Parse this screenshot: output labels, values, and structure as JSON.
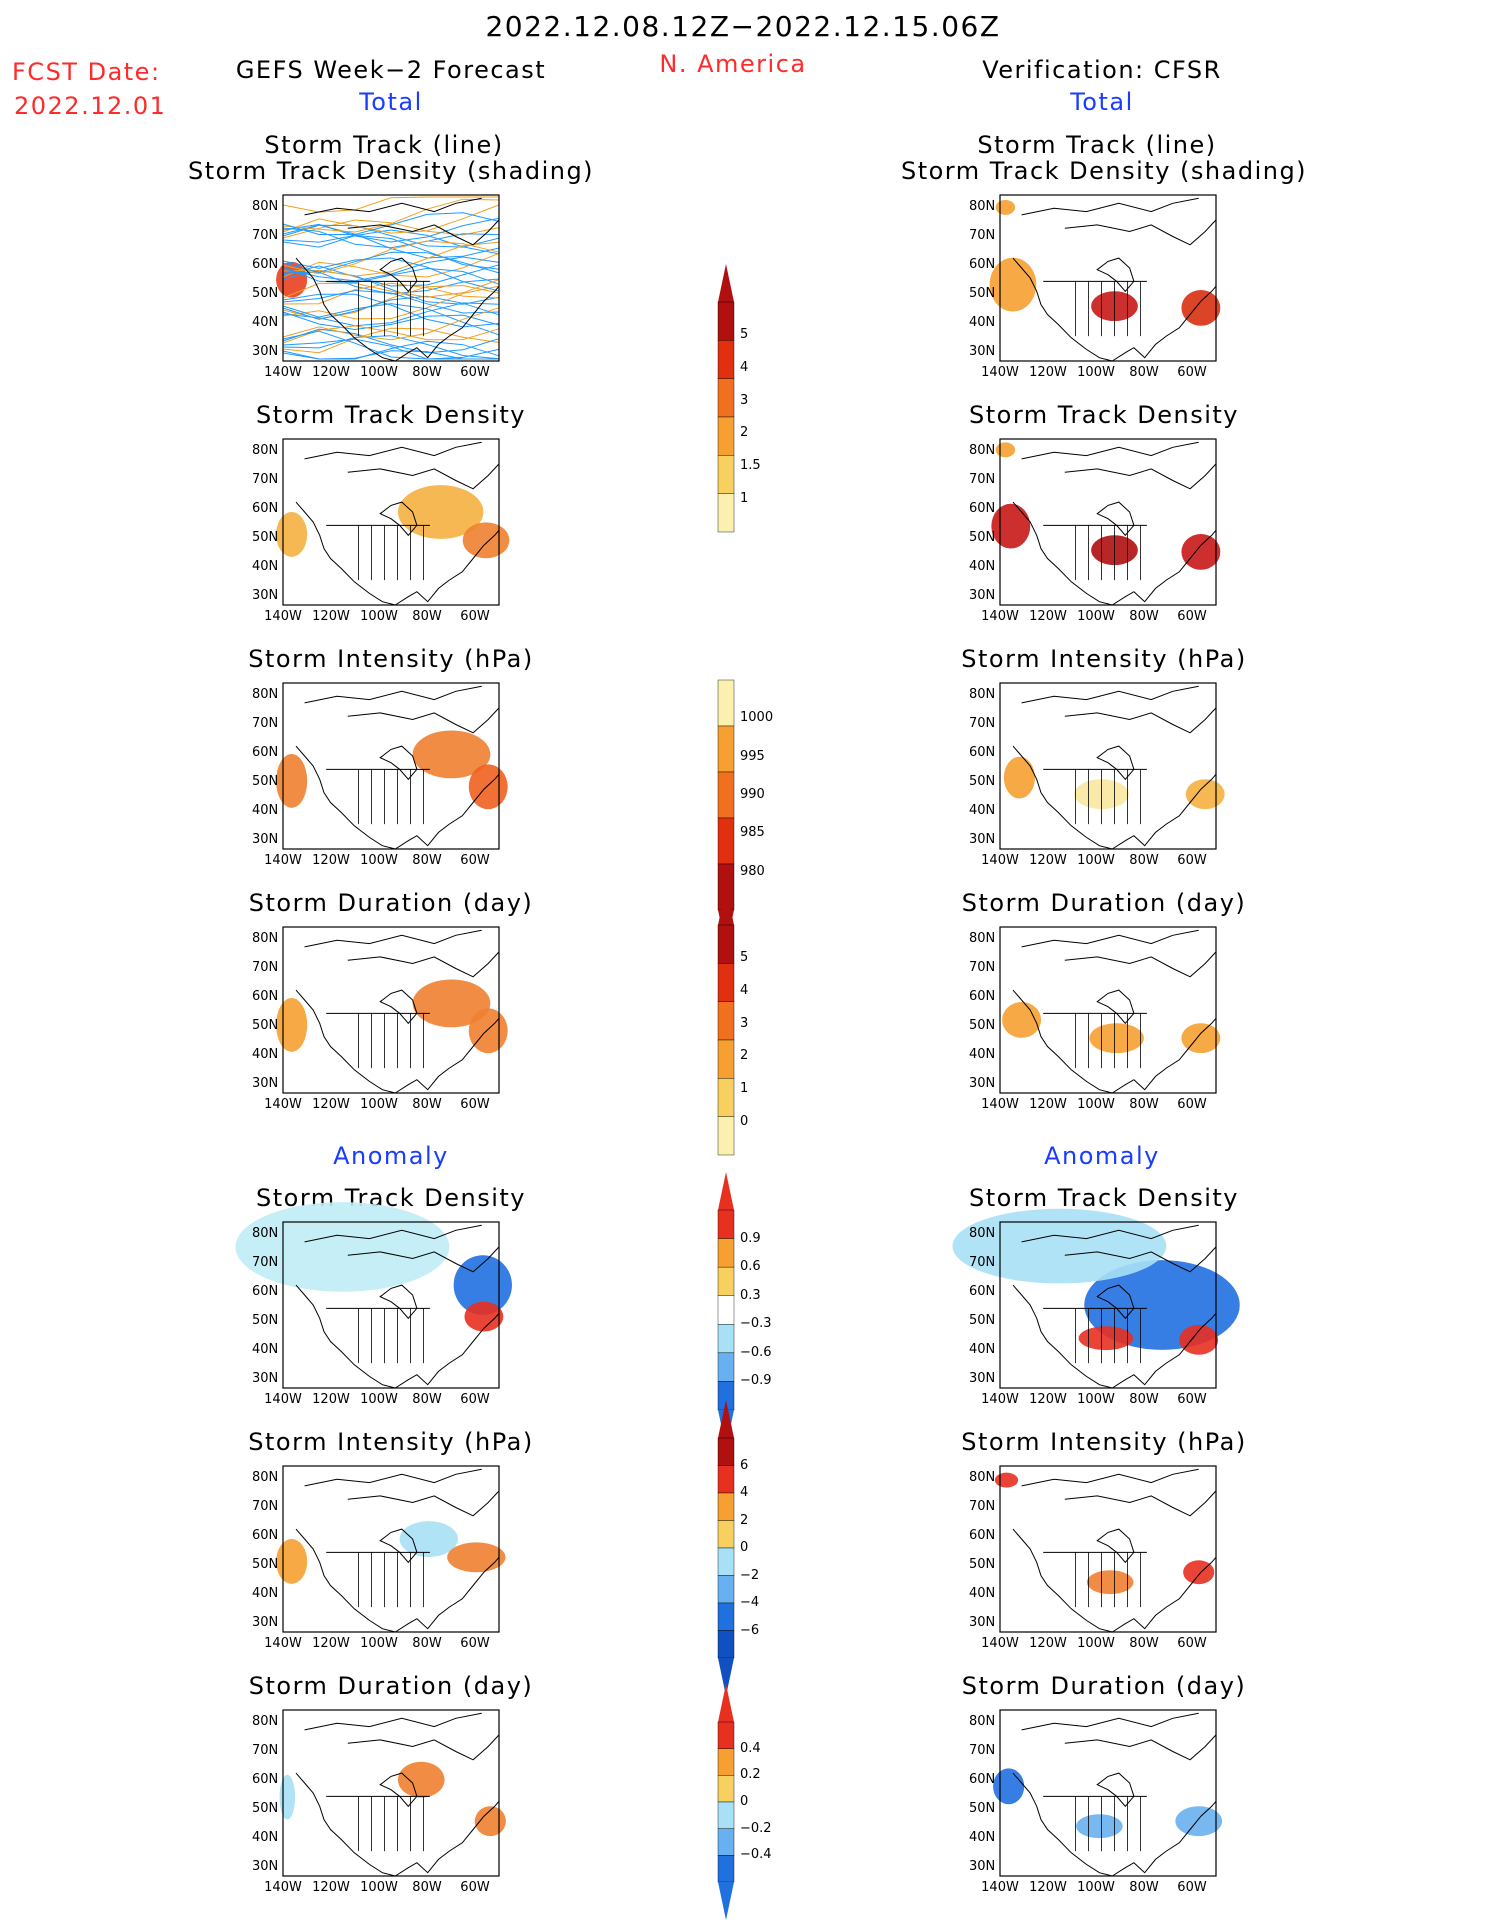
{
  "header": {
    "date_range": "2022.12.08.12Z−2022.12.15.06Z",
    "fcst_label": "FCST Date:",
    "fcst_date": "2022.12.01",
    "left_title": "GEFS Week−2 Forecast",
    "region": "N. America",
    "right_title": "Verification: CFSR",
    "total_left": "Total",
    "total_right": "Total",
    "anomaly_left": "Anomaly",
    "anomaly_right": "Anomaly"
  },
  "panel_titles": {
    "track_line": "Storm Track (line)",
    "track_shading": "Storm Track Density (shading)",
    "density": "Storm Track Density",
    "intensity": "Storm Intensity (hPa)",
    "duration": "Storm Duration (day)"
  },
  "axes": {
    "lat_ticks": [
      "80N",
      "70N",
      "60N",
      "50N",
      "40N",
      "30N"
    ],
    "lon_ticks": [
      "140W",
      "120W",
      "100W",
      "80W",
      "60W"
    ]
  },
  "colorbars": {
    "density": [
      "5",
      "4",
      "3",
      "2",
      "1.5",
      "1"
    ],
    "intensity": [
      "1000",
      "995",
      "990",
      "985",
      "980"
    ],
    "duration": [
      "5",
      "4",
      "3",
      "2",
      "1",
      "0"
    ],
    "density_anom": [
      "0.9",
      "0.6",
      "0.3",
      "−0.3",
      "−0.6",
      "−0.9"
    ],
    "intensity_anom": [
      "6",
      "4",
      "2",
      "0",
      "−2",
      "−4",
      "−6"
    ],
    "duration_anom": [
      "0.4",
      "0.2",
      "0",
      "−0.2",
      "−0.4"
    ]
  },
  "colors": {
    "title_red": "#ff2a2a",
    "label_blue": "#1a3cff",
    "track_blue": "#1e9bff",
    "track_orange": "#f0a020"
  }
}
